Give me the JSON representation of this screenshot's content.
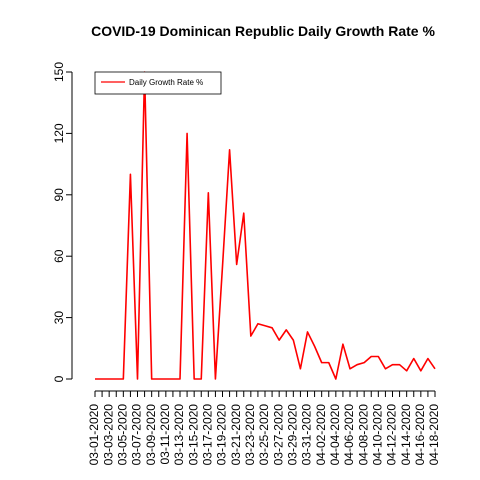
{
  "chart_data": {
    "type": "line",
    "title": "COVID-19 Dominican Republic Daily Growth Rate %",
    "xlabel": "",
    "ylabel": "",
    "ylim": [
      0,
      150
    ],
    "yticks": [
      0,
      30,
      60,
      90,
      120,
      150
    ],
    "x": [
      "03-01-2020",
      "03-02-2020",
      "03-03-2020",
      "03-04-2020",
      "03-05-2020",
      "03-06-2020",
      "03-07-2020",
      "03-08-2020",
      "03-09-2020",
      "03-10-2020",
      "03-11-2020",
      "03-12-2020",
      "03-13-2020",
      "03-14-2020",
      "03-15-2020",
      "03-16-2020",
      "03-17-2020",
      "03-18-2020",
      "03-19-2020",
      "03-20-2020",
      "03-21-2020",
      "03-22-2020",
      "03-23-2020",
      "03-24-2020",
      "03-25-2020",
      "03-26-2020",
      "03-27-2020",
      "03-28-2020",
      "03-29-2020",
      "03-30-2020",
      "03-31-2020",
      "04-01-2020",
      "04-02-2020",
      "04-03-2020",
      "04-04-2020",
      "04-05-2020",
      "04-06-2020",
      "04-07-2020",
      "04-08-2020",
      "04-09-2020",
      "04-10-2020",
      "04-11-2020",
      "04-12-2020",
      "04-13-2020",
      "04-14-2020",
      "04-15-2020",
      "04-16-2020",
      "04-17-2020",
      "04-18-2020"
    ],
    "x_tick_labels": [
      "03-01-2020",
      "03-03-2020",
      "03-05-2020",
      "03-07-2020",
      "03-09-2020",
      "03-11-2020",
      "03-13-2020",
      "03-15-2020",
      "03-17-2020",
      "03-19-2020",
      "03-21-2020",
      "03-23-2020",
      "03-25-2020",
      "03-27-2020",
      "03-29-2020",
      "03-31-2020",
      "04-02-2020",
      "04-04-2020",
      "04-06-2020",
      "04-08-2020",
      "04-10-2020",
      "04-12-2020",
      "04-14-2020",
      "04-16-2020",
      "04-18-2020"
    ],
    "series": [
      {
        "name": "Daily Growth Rate %",
        "color": "#ff0000",
        "values": [
          0,
          0,
          0,
          0,
          0,
          100,
          0,
          150,
          0,
          0,
          0,
          0,
          0,
          120,
          0,
          0,
          91,
          0,
          55,
          112,
          56,
          81,
          21,
          27,
          26,
          25,
          19,
          24,
          19,
          5,
          23,
          16,
          8,
          8,
          0,
          17,
          5,
          7,
          8,
          11,
          11,
          5,
          7,
          7,
          4,
          10,
          4,
          10,
          5
        ]
      }
    ],
    "legend": {
      "position": "top-left",
      "entries": [
        "Daily Growth Rate %"
      ]
    },
    "grid": false
  }
}
